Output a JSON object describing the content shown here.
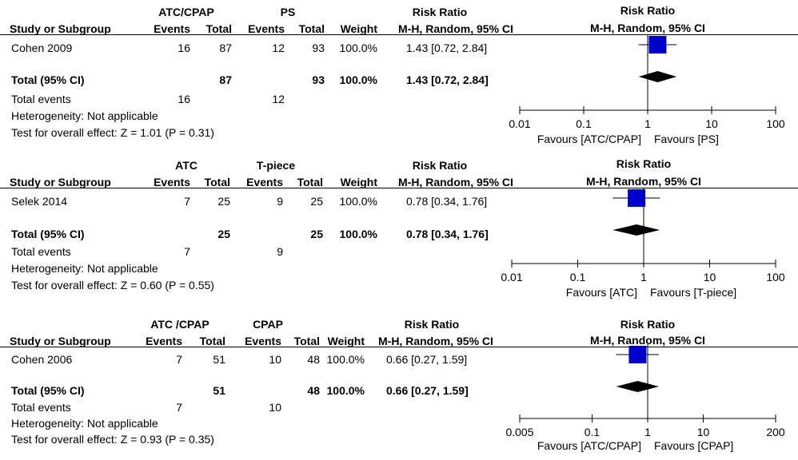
{
  "panels": [
    {
      "group_exp": "ATC/CPAP",
      "group_ctl": "PS",
      "col_study": "Study or Subgroup",
      "col_events": "Events",
      "col_total": "Total",
      "col_weight": "Weight",
      "col_rr": "Risk Ratio",
      "col_rr_method": "M-H, Random, 95% CI",
      "study": {
        "name": "Cohen 2009",
        "exp_events": "16",
        "exp_total": "87",
        "ctl_events": "12",
        "ctl_total": "93",
        "weight": "100.0%",
        "rr_text": "1.43 [0.72, 2.84]"
      },
      "total_label": "Total (95% CI)",
      "total_exp": "87",
      "total_ctl": "93",
      "total_weight": "100.0%",
      "total_rr_text": "1.43 [0.72, 2.84]",
      "total_events_label": "Total events",
      "total_events_exp": "16",
      "total_events_ctl": "12",
      "heterogeneity": "Heterogeneity: Not applicable",
      "overall": "Test for overall effect: Z = 1.01 (P = 0.31)",
      "favours_left": "Favours [ATC/CPAP]",
      "favours_right": "Favours [PS]"
    },
    {
      "group_exp": "ATC",
      "group_ctl": "T-piece",
      "col_study": "Study or Subgroup",
      "col_events": "Events",
      "col_total": "Total",
      "col_weight": "Weight",
      "col_rr": "Risk Ratio",
      "col_rr_method": "M-H, Random, 95% CI",
      "study": {
        "name": "Selek 2014",
        "exp_events": "7",
        "exp_total": "25",
        "ctl_events": "9",
        "ctl_total": "25",
        "weight": "100.0%",
        "rr_text": "0.78 [0.34, 1.76]"
      },
      "total_label": "Total (95% CI)",
      "total_exp": "25",
      "total_ctl": "25",
      "total_weight": "100.0%",
      "total_rr_text": "0.78 [0.34, 1.76]",
      "total_events_label": "Total events",
      "total_events_exp": "7",
      "total_events_ctl": "9",
      "heterogeneity": "Heterogeneity: Not applicable",
      "overall": "Test for overall effect: Z = 0.60 (P = 0.55)",
      "favours_left": "Favours [ATC]",
      "favours_right": "Favours [T-piece]"
    },
    {
      "group_exp": "ATC /CPAP",
      "group_ctl": "CPAP",
      "col_study": "Study or Subgroup",
      "col_events": "Events",
      "col_total": "Total",
      "col_weight": "Weight",
      "col_rr": "Risk Ratio",
      "col_rr_method": "M-H, Random, 95% CI",
      "study": {
        "name": "Cohen 2006",
        "exp_events": "7",
        "exp_total": "51",
        "ctl_events": "10",
        "ctl_total": "48",
        "weight": "100.0%",
        "rr_text": "0.66 [0.27, 1.59]"
      },
      "total_label": "Total (95% CI)",
      "total_exp": "51",
      "total_ctl": "48",
      "total_weight": "100.0%",
      "total_rr_text": "0.66 [0.27, 1.59]",
      "total_events_label": "Total events",
      "total_events_exp": "7",
      "total_events_ctl": "10",
      "heterogeneity": "Heterogeneity: Not applicable",
      "overall": "Test for overall effect: Z = 0.93 (P = 0.35)",
      "favours_left": "Favours [ATC/CPAP]",
      "favours_right": "Favours [CPAP]"
    }
  ],
  "chart_data": [
    {
      "type": "forest",
      "title": "Risk Ratio",
      "subtitle": "M-H, Random, 95% CI",
      "scale": "log",
      "xlim": [
        0.01,
        100
      ],
      "ticks": [
        "0.01",
        "0.1",
        "1",
        "10",
        "100"
      ],
      "tick_values": [
        0.01,
        0.1,
        1,
        10,
        100
      ],
      "studies": [
        {
          "name": "Cohen 2009",
          "rr": 1.43,
          "ci": [
            0.72,
            2.84
          ],
          "weight": 100.0
        }
      ],
      "total": {
        "rr": 1.43,
        "ci": [
          0.72,
          2.84
        ]
      },
      "xlabel_left": "Favours [ATC/CPAP]",
      "xlabel_right": "Favours [PS]",
      "marker_color": "#0000cc"
    },
    {
      "type": "forest",
      "title": "Risk Ratio",
      "subtitle": "M-H, Random, 95% CI",
      "scale": "log",
      "xlim": [
        0.01,
        100
      ],
      "ticks": [
        "0.01",
        "0.1",
        "1",
        "10",
        "100"
      ],
      "tick_values": [
        0.01,
        0.1,
        1,
        10,
        100
      ],
      "studies": [
        {
          "name": "Selek 2014",
          "rr": 0.78,
          "ci": [
            0.34,
            1.76
          ],
          "weight": 100.0
        }
      ],
      "total": {
        "rr": 0.78,
        "ci": [
          0.34,
          1.76
        ]
      },
      "xlabel_left": "Favours [ATC]",
      "xlabel_right": "Favours [T-piece]",
      "marker_color": "#0000cc"
    },
    {
      "type": "forest",
      "title": "Risk Ratio",
      "subtitle": "M-H, Random, 95% CI",
      "scale": "log",
      "xlim": [
        0.005,
        200
      ],
      "ticks": [
        "0.005",
        "0.1",
        "1",
        "10",
        "200"
      ],
      "tick_values": [
        0.005,
        0.1,
        1,
        10,
        200
      ],
      "studies": [
        {
          "name": "Cohen 2006",
          "rr": 0.66,
          "ci": [
            0.27,
            1.59
          ],
          "weight": 100.0
        }
      ],
      "total": {
        "rr": 0.66,
        "ci": [
          0.27,
          1.59
        ]
      },
      "xlabel_left": "Favours [ATC/CPAP]",
      "xlabel_right": "Favours [CPAP]",
      "marker_color": "#0000cc"
    }
  ]
}
